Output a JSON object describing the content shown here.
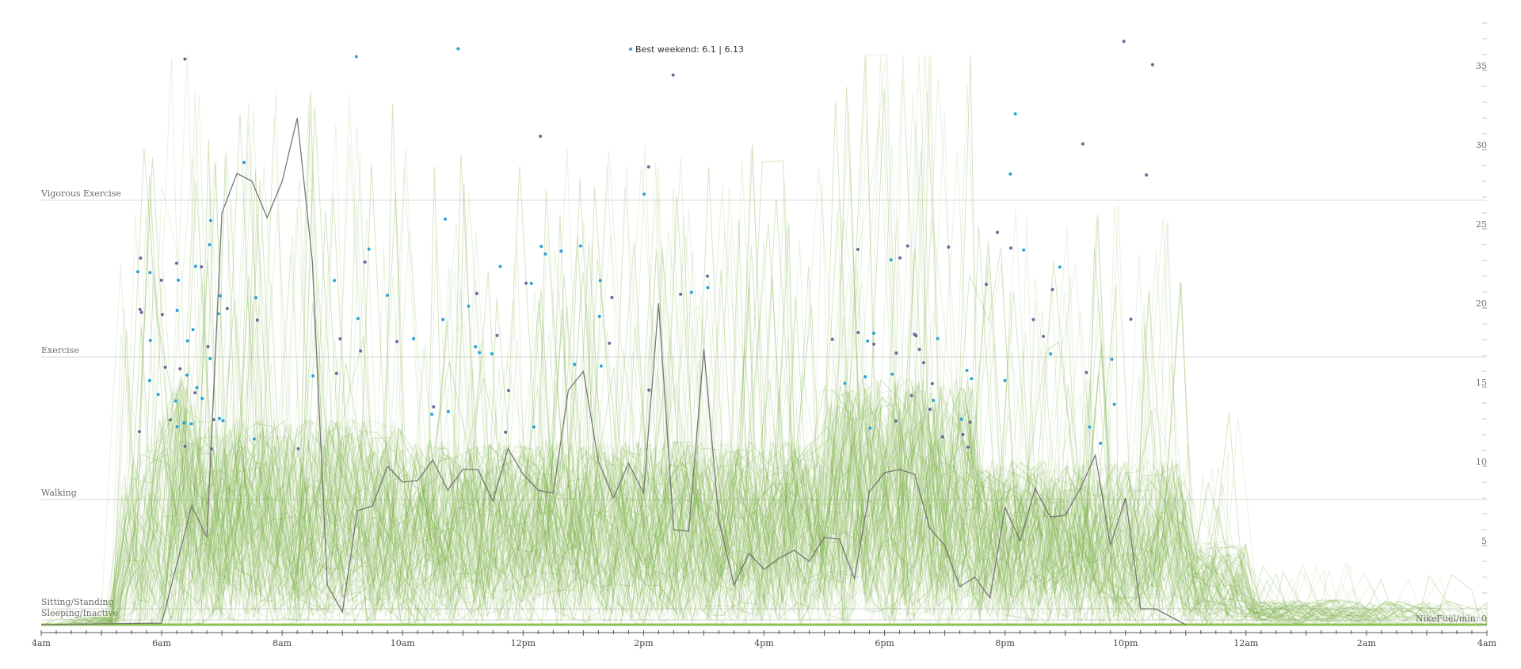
{
  "chart_data": {
    "type": "line",
    "x_axis": {
      "range": [
        "4am",
        "4am"
      ],
      "ticks": [
        "4am",
        "6am",
        "8am",
        "10am",
        "12pm",
        "2pm",
        "4pm",
        "6pm",
        "8pm",
        "10pm",
        "12am",
        "2am",
        "4am"
      ]
    },
    "y_axis": {
      "label": "NikeFuel/min: 0",
      "range": [
        0,
        38
      ],
      "ticks": [
        5,
        10,
        15,
        20,
        25,
        30,
        35
      ]
    },
    "activity_levels": [
      {
        "label": "Vigorous Exercise",
        "value": 26.8
      },
      {
        "label": "Exercise",
        "value": 16.9
      },
      {
        "label": "Walking",
        "value": 7.9
      },
      {
        "label": "Sitting/Standing",
        "value": 1.0
      },
      {
        "label": "Sleeping/Inactive",
        "value": 0.3
      }
    ],
    "annotation": "Best weekend: 6.1 | 6.13",
    "highlight_series": {
      "name": "Best weekend",
      "x_hours": [
        4.0,
        6.0,
        6.5,
        6.75,
        7.0,
        7.25,
        7.5,
        7.75,
        8.0,
        8.25,
        8.5,
        8.75,
        9.0,
        9.25,
        9.5,
        9.75,
        10.0,
        10.25,
        10.5,
        10.75,
        11.0,
        11.25,
        11.5,
        11.75,
        12.0,
        12.25,
        12.5,
        12.75,
        13.0,
        13.25,
        13.5,
        13.75,
        14.0,
        14.25,
        14.5,
        14.75,
        15.0,
        15.25,
        15.5,
        15.75,
        16.0,
        16.25,
        16.5,
        16.75,
        17.0,
        17.25,
        17.5,
        17.75,
        18.0,
        18.25,
        18.5,
        18.75,
        19.0,
        19.25,
        19.5,
        19.75,
        20.0,
        20.25,
        20.5,
        20.75,
        21.0,
        21.25,
        21.5,
        21.75,
        22.0,
        22.25,
        22.5,
        22.75,
        23.0
      ],
      "values": [
        0.0,
        0.1,
        7.5,
        5.5,
        26.0,
        28.5,
        28.0,
        25.7,
        28.0,
        32.0,
        23.0,
        2.5,
        0.8,
        7.2,
        7.5,
        10.0,
        9.0,
        9.1,
        10.4,
        8.5,
        9.8,
        9.8,
        7.8,
        11.1,
        9.5,
        8.5,
        8.3,
        14.8,
        16.0,
        10.3,
        8.0,
        10.2,
        8.3,
        20.3,
        6.0,
        5.9,
        17.4,
        6.6,
        2.5,
        4.5,
        3.5,
        4.2,
        4.7,
        4.0,
        5.5,
        5.4,
        2.9,
        8.4,
        9.6,
        9.8,
        9.5,
        6.1,
        5.0,
        2.4,
        3.0,
        1.7,
        7.4,
        5.3,
        8.6,
        6.8,
        6.9,
        8.6,
        10.7,
        5.0,
        8.0,
        1.0,
        1.0,
        0.5,
        0.0
      ]
    },
    "grid": true,
    "legend": "none"
  }
}
